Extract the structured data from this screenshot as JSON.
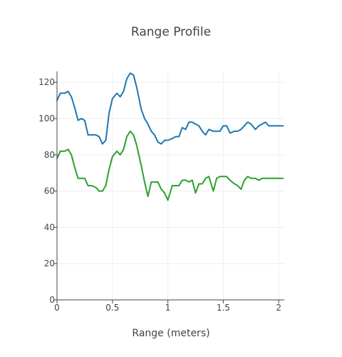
{
  "chart_data": {
    "type": "line",
    "title": "Range Profile",
    "xlabel": "Range (meters)",
    "ylabel": "",
    "xlim": [
      0,
      2.05
    ],
    "ylim": [
      0,
      126
    ],
    "grid": true,
    "legend": "none",
    "x_ticks": [
      {
        "value": 0,
        "label": "0"
      },
      {
        "value": 0.5,
        "label": "0.5"
      },
      {
        "value": 1,
        "label": "1"
      },
      {
        "value": 1.5,
        "label": "1.5"
      },
      {
        "value": 2,
        "label": "2"
      }
    ],
    "y_ticks": [
      {
        "value": 0,
        "label": "0"
      },
      {
        "value": 20,
        "label": "20"
      },
      {
        "value": 40,
        "label": "40"
      },
      {
        "value": 60,
        "label": "60"
      },
      {
        "value": 80,
        "label": "80"
      },
      {
        "value": 100,
        "label": "100"
      },
      {
        "value": 120,
        "label": "120"
      }
    ],
    "x": [
      0.0,
      0.03,
      0.07,
      0.1,
      0.13,
      0.16,
      0.19,
      0.22,
      0.25,
      0.28,
      0.31,
      0.35,
      0.38,
      0.41,
      0.44,
      0.47,
      0.5,
      0.54,
      0.57,
      0.6,
      0.63,
      0.66,
      0.69,
      0.72,
      0.76,
      0.79,
      0.82,
      0.85,
      0.88,
      0.91,
      0.94,
      0.97,
      1.0,
      1.04,
      1.07,
      1.1,
      1.13,
      1.16,
      1.19,
      1.22,
      1.25,
      1.28,
      1.31,
      1.34,
      1.37,
      1.41,
      1.44,
      1.47,
      1.5,
      1.53,
      1.56,
      1.6,
      1.63,
      1.66,
      1.69,
      1.72,
      1.75,
      1.79,
      1.82,
      1.85,
      1.88,
      1.91,
      1.94,
      1.98,
      2.01,
      2.04
    ],
    "series": [
      {
        "color": "#1f77b4",
        "values": [
          110,
          114,
          114,
          115,
          112,
          106,
          99,
          100,
          99,
          91,
          91,
          91,
          90,
          86,
          88,
          103,
          111,
          114,
          112,
          115,
          122,
          125,
          124,
          117,
          105,
          100,
          97,
          93,
          91,
          87,
          86,
          88,
          88,
          89,
          90,
          90,
          95,
          94,
          98,
          98,
          97,
          96,
          93,
          91,
          94,
          93,
          93,
          93,
          96,
          96,
          92,
          93,
          93,
          94,
          96,
          98,
          97,
          94,
          96,
          97,
          98,
          96,
          96,
          96,
          96,
          96
        ],
        "name": ""
      },
      {
        "color": "#2ca02c",
        "values": [
          78,
          82,
          82,
          83,
          80,
          73,
          67,
          67,
          67,
          63,
          63,
          62,
          60,
          60,
          63,
          72,
          79,
          82,
          80,
          83,
          90,
          93,
          91,
          85,
          74,
          65,
          57,
          65,
          65,
          65,
          61,
          59,
          55,
          63,
          63,
          63,
          66,
          66,
          65,
          66,
          59,
          64,
          64,
          67,
          68,
          60,
          67,
          68,
          68,
          68,
          66,
          64,
          63,
          61,
          66,
          68,
          67,
          67,
          66,
          67,
          67,
          67,
          67,
          67,
          67,
          67
        ],
        "name": ""
      }
    ]
  }
}
